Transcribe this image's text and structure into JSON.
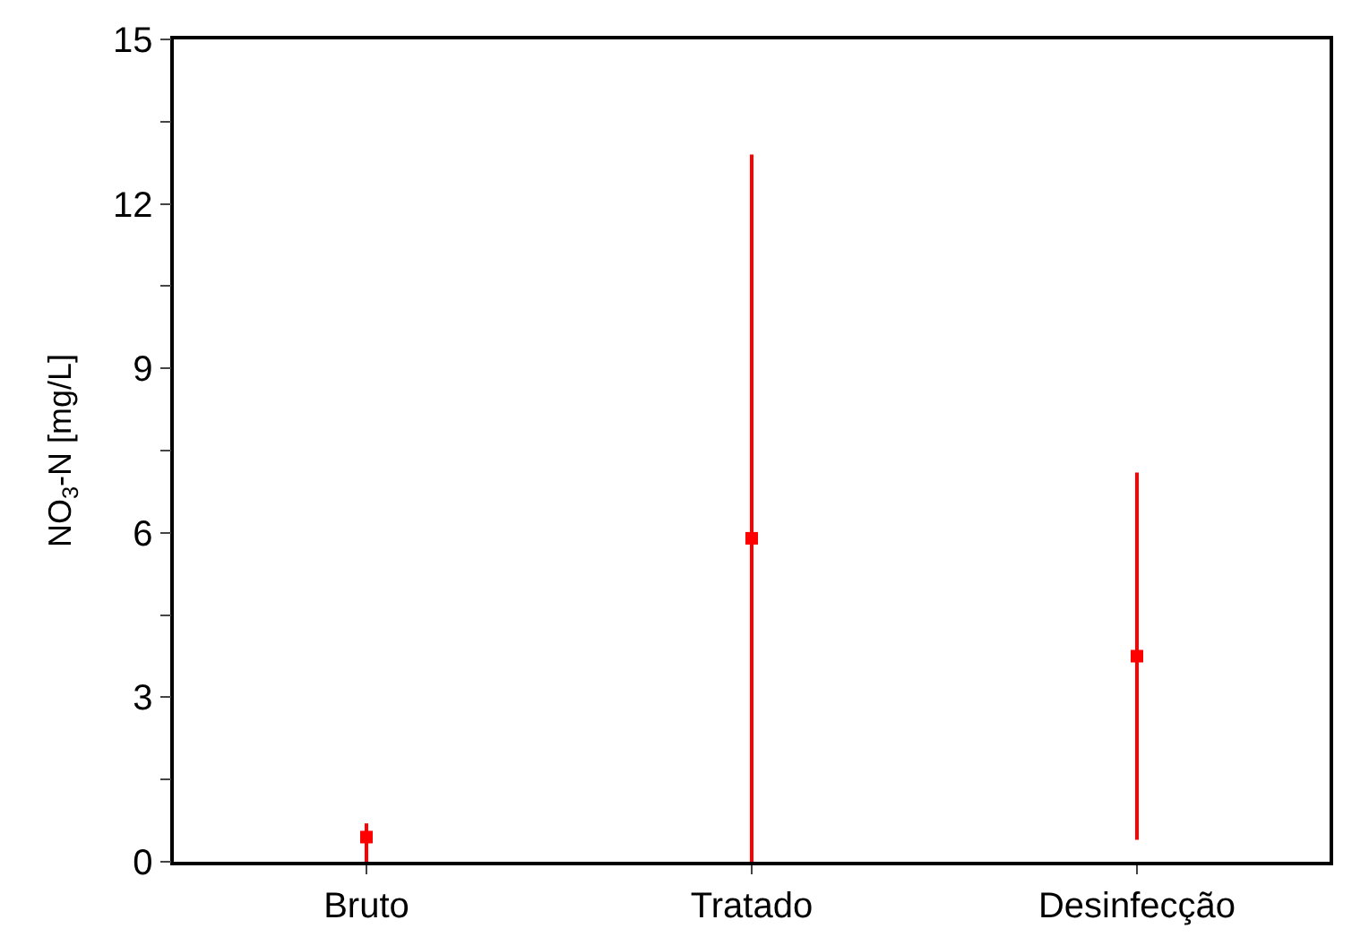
{
  "chart_data": {
    "type": "scatter",
    "ylabel": "NO$_{3}$-N [mg/L]",
    "categories": [
      "Bruto",
      "Tratado",
      "Desinfecção"
    ],
    "series": [
      {
        "color": "#ff0000",
        "values": [
          0.45,
          5.9,
          3.75
        ],
        "errors": [
          [
            0,
            0.7
          ],
          [
            0,
            12.9
          ],
          [
            0.4,
            7.1
          ]
        ]
      }
    ],
    "ylim": [
      0,
      15
    ],
    "yticks": [
      0,
      {
        "value": 1.5,
        "label": null
      },
      3,
      {
        "value": 4.5,
        "label": null
      },
      6,
      {
        "value": 7.5,
        "label": null
      },
      9,
      {
        "value": 10.5,
        "label": null
      },
      12,
      {
        "value": 13.5,
        "label": null
      },
      15
    ]
  }
}
